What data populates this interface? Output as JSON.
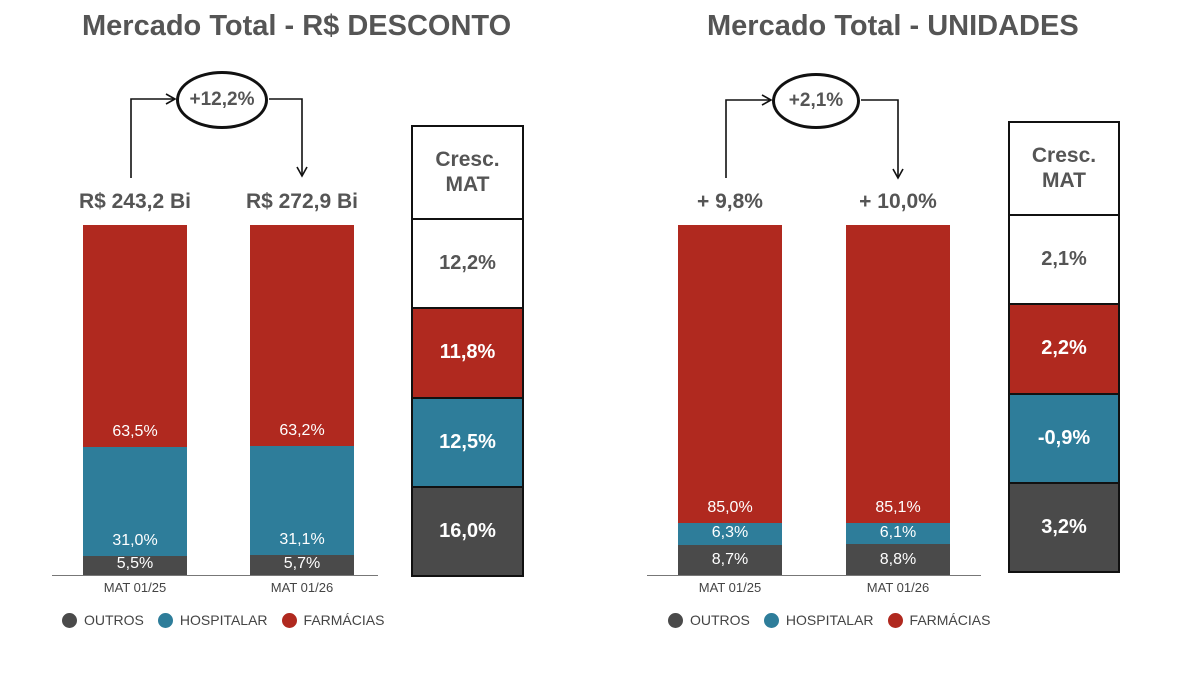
{
  "colors": {
    "outros": "#4a4a4a",
    "hospitalar": "#2e7d9a",
    "farmacias": "#b0291f",
    "header_bg": "#ffffff",
    "total_bg": "#ffffff"
  },
  "legend": [
    {
      "key": "outros",
      "label": "OUTROS"
    },
    {
      "key": "hospitalar",
      "label": "HOSPITALAR"
    },
    {
      "key": "farmacias",
      "label": "FARMÁCIAS"
    }
  ],
  "chart_data": [
    {
      "type": "bar",
      "title": "Mercado Total - R$ DESCONTO",
      "categories": [
        "MAT 01/25",
        "MAT 01/26"
      ],
      "top_labels": [
        "R$ 243,2 Bi",
        "R$ 272,9 Bi"
      ],
      "growth": "+12,2%",
      "stacked": true,
      "series": [
        {
          "name": "OUTROS",
          "key": "outros",
          "values": [
            5.5,
            5.7
          ],
          "labels": [
            "5,5%",
            "5,7%"
          ]
        },
        {
          "name": "HOSPITALAR",
          "key": "hospitalar",
          "values": [
            31.0,
            31.1
          ],
          "labels": [
            "31,0%",
            "31,1%"
          ]
        },
        {
          "name": "FARMÁCIAS",
          "key": "farmacias",
          "values": [
            63.5,
            63.2
          ],
          "labels": [
            "63,5%",
            "63,2%"
          ]
        }
      ],
      "ylim": [
        0,
        100
      ],
      "growth_table": {
        "header": "Cresc. MAT",
        "rows": [
          {
            "key": "total",
            "value": "12,2%"
          },
          {
            "key": "farmacias",
            "value": "11,8%"
          },
          {
            "key": "hospitalar",
            "value": "12,5%"
          },
          {
            "key": "outros",
            "value": "16,0%"
          }
        ]
      }
    },
    {
      "type": "bar",
      "title": "Mercado Total - UNIDADES",
      "categories": [
        "MAT 01/25",
        "MAT 01/26"
      ],
      "top_labels": [
        "+ 9,8%",
        "+ 10,0%"
      ],
      "growth": "+2,1%",
      "stacked": true,
      "series": [
        {
          "name": "OUTROS",
          "key": "outros",
          "values": [
            8.7,
            8.8
          ],
          "labels": [
            "8,7%",
            "8,8%"
          ]
        },
        {
          "name": "HOSPITALAR",
          "key": "hospitalar",
          "values": [
            6.3,
            6.1
          ],
          "labels": [
            "6,3%",
            "6,1%"
          ]
        },
        {
          "name": "FARMÁCIAS",
          "key": "farmacias",
          "values": [
            85.0,
            85.1
          ],
          "labels": [
            "85,0%",
            "85,1%"
          ]
        }
      ],
      "ylim": [
        0,
        100
      ],
      "growth_table": {
        "header": "Cresc. MAT",
        "rows": [
          {
            "key": "total",
            "value": "2,1%"
          },
          {
            "key": "farmacias",
            "value": "2,2%"
          },
          {
            "key": "hospitalar",
            "value": "-0,9%"
          },
          {
            "key": "outros",
            "value": "3,2%"
          }
        ]
      }
    }
  ]
}
